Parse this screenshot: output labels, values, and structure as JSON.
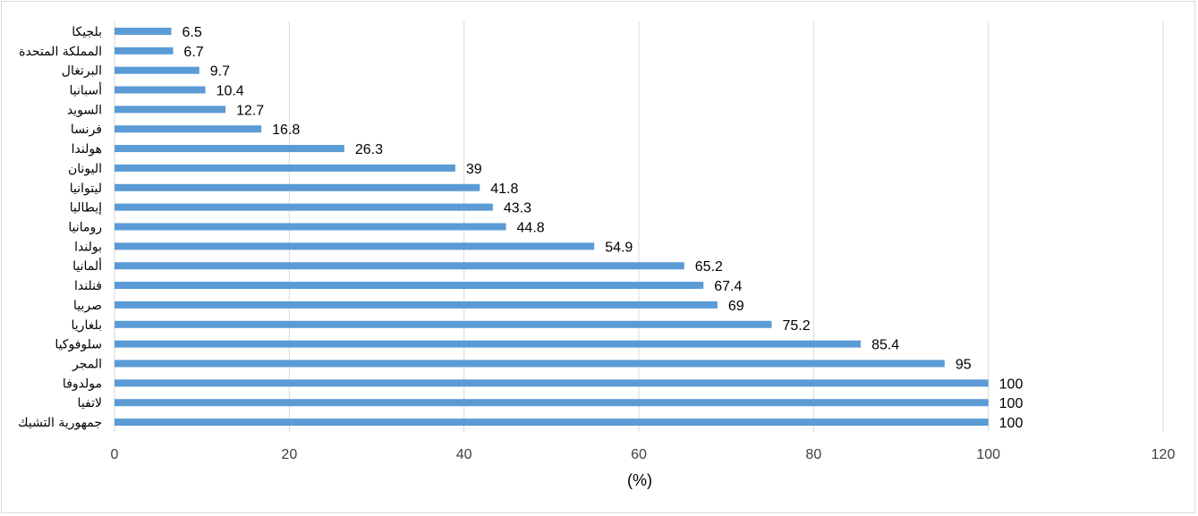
{
  "chart_data": {
    "type": "bar",
    "orientation": "horizontal",
    "categories": [
      "بلجيكا",
      "المملكة المتحدة",
      "البرتغال",
      "أسبانيا",
      "السويد",
      "فرنسا",
      "هولندا",
      "اليونان",
      "ليتوانيا",
      "إيطاليا",
      "رومانيا",
      "بولندا",
      "ألمانيا",
      "فنلندا",
      "صربيا",
      "بلغاريا",
      "سلوفوكيا",
      "المجر",
      "مولدوفا",
      "لاتفيا",
      "جمهورية التشيك"
    ],
    "values": [
      6.5,
      6.7,
      9.7,
      10.4,
      12.7,
      16.8,
      26.3,
      39,
      41.8,
      43.3,
      44.8,
      54.9,
      65.2,
      67.4,
      69,
      75.2,
      85.4,
      95,
      100,
      100,
      100
    ],
    "value_labels": [
      "6.5",
      "6.7",
      "9.7",
      "10.4",
      "12.7",
      "16.8",
      "26.3",
      "39",
      "41.8",
      "43.3",
      "44.8",
      "54.9",
      "65.2",
      "67.4",
      "69",
      "75.2",
      "85.4",
      "95",
      "100",
      "100",
      "100"
    ],
    "xlim": [
      0,
      120
    ],
    "x_ticks": [
      "0",
      "20",
      "40",
      "60",
      "80",
      "100",
      "120"
    ],
    "xlabel": "(%)",
    "title": "",
    "grid": "vertical",
    "bar_color": "#5b9bd5"
  }
}
